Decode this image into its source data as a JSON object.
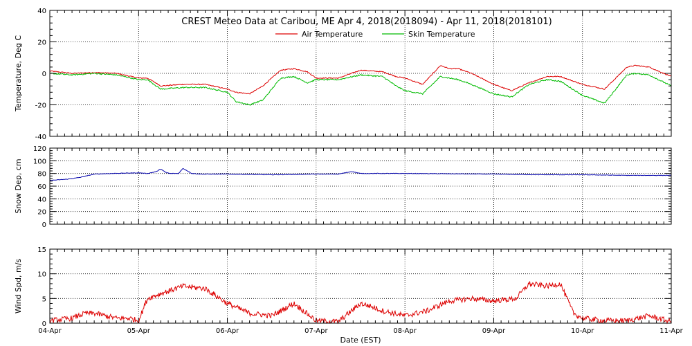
{
  "chart_data": [
    {
      "type": "line",
      "title": "CREST Meteo Data at Caribou, ME   Apr  4, 2018(2018094) - Apr 11, 2018(2018101)",
      "xlabel": "",
      "ylabel": "Temperature, Deg C",
      "xlim": [
        "2018-04-04",
        "2018-04-11"
      ],
      "ylim": [
        -40,
        40
      ],
      "yticks": [
        -40,
        -20,
        0,
        20,
        40
      ],
      "grid": true,
      "legend": "top-center",
      "x": [
        0,
        0.25,
        0.5,
        0.75,
        1.0,
        1.1,
        1.25,
        1.5,
        1.75,
        2.0,
        2.1,
        2.25,
        2.4,
        2.6,
        2.75,
        2.9,
        3.0,
        3.25,
        3.5,
        3.75,
        3.9,
        4.0,
        4.2,
        4.4,
        4.5,
        4.6,
        4.75,
        5.0,
        5.2,
        5.4,
        5.6,
        5.75,
        6.0,
        6.25,
        6.5,
        6.6,
        6.75,
        7.0
      ],
      "series": [
        {
          "name": "Air Temperature",
          "color": "#dd0000",
          "values": [
            1.5,
            0,
            0.5,
            0,
            -3,
            -3,
            -8,
            -7,
            -7,
            -10,
            -12,
            -13,
            -8,
            2,
            3,
            1,
            -3,
            -3,
            2,
            1,
            -2,
            -3,
            -7,
            5,
            3,
            3,
            0,
            -7,
            -11,
            -6,
            -2,
            -2,
            -7,
            -10,
            4,
            5,
            4,
            -2
          ]
        },
        {
          "name": "Skin Temperature",
          "color": "#00bb00",
          "values": [
            0,
            -1,
            0,
            -1,
            -4,
            -4,
            -10,
            -9,
            -9,
            -12,
            -18,
            -20,
            -17,
            -3,
            -2,
            -6,
            -4,
            -4,
            -1,
            -2,
            -8,
            -11,
            -13,
            -2,
            -3,
            -4,
            -7,
            -13,
            -15,
            -7,
            -4,
            -5,
            -14,
            -19,
            -1,
            0,
            -1,
            -8
          ]
        }
      ]
    },
    {
      "type": "line",
      "title": "",
      "xlabel": "",
      "ylabel": "Snow Dep, cm",
      "xlim": [
        "2018-04-04",
        "2018-04-11"
      ],
      "ylim": [
        0,
        120
      ],
      "yticks": [
        0,
        20,
        40,
        60,
        80,
        100,
        120
      ],
      "grid": true,
      "x": [
        0,
        0.2,
        0.35,
        0.5,
        0.7,
        1.0,
        1.1,
        1.2,
        1.25,
        1.3,
        1.35,
        1.45,
        1.5,
        1.55,
        1.6,
        1.7,
        2.0,
        2.5,
        3.0,
        3.25,
        3.4,
        3.5,
        4.0,
        5.0,
        5.5,
        6.0,
        6.5,
        7.0
      ],
      "series": [
        {
          "name": "",
          "color": "#0000aa",
          "values": [
            69,
            71,
            74,
            79,
            80,
            81,
            80,
            83,
            87,
            82,
            80,
            80,
            88,
            84,
            80,
            79,
            79,
            78,
            79,
            79,
            83,
            80,
            80,
            79,
            78,
            78,
            77,
            77
          ]
        }
      ]
    },
    {
      "type": "line",
      "title": "",
      "xlabel": "Date (EST)",
      "ylabel": "Wind Spd, m/s",
      "xlim": [
        "2018-04-04",
        "2018-04-11"
      ],
      "ylim": [
        0,
        15
      ],
      "yticks": [
        0,
        5,
        10,
        15
      ],
      "xticks": [
        "04-Apr",
        "05-Apr",
        "06-Apr",
        "07-Apr",
        "08-Apr",
        "09-Apr",
        "10-Apr",
        "11-Apr"
      ],
      "grid": true,
      "x": [
        0,
        0.25,
        0.4,
        0.5,
        0.75,
        0.9,
        1.0,
        1.1,
        1.25,
        1.5,
        1.75,
        2.0,
        2.25,
        2.5,
        2.75,
        3.0,
        3.25,
        3.5,
        3.6,
        3.75,
        4.0,
        4.25,
        4.5,
        4.75,
        5.0,
        5.25,
        5.4,
        5.6,
        5.75,
        5.9,
        6.0,
        6.25,
        6.5,
        6.75,
        7.0
      ],
      "series": [
        {
          "name": "",
          "color": "#dd0000",
          "values": [
            0.5,
            1,
            2,
            2,
            1,
            1,
            0.5,
            5,
            6,
            7.5,
            7,
            4,
            2,
            1.5,
            4,
            0.5,
            0.3,
            4,
            3.5,
            2.5,
            1.5,
            2.5,
            4.5,
            5,
            4.5,
            5,
            8,
            7.5,
            8,
            2,
            1,
            0.5,
            0.5,
            1.5,
            0.3
          ]
        }
      ]
    }
  ]
}
